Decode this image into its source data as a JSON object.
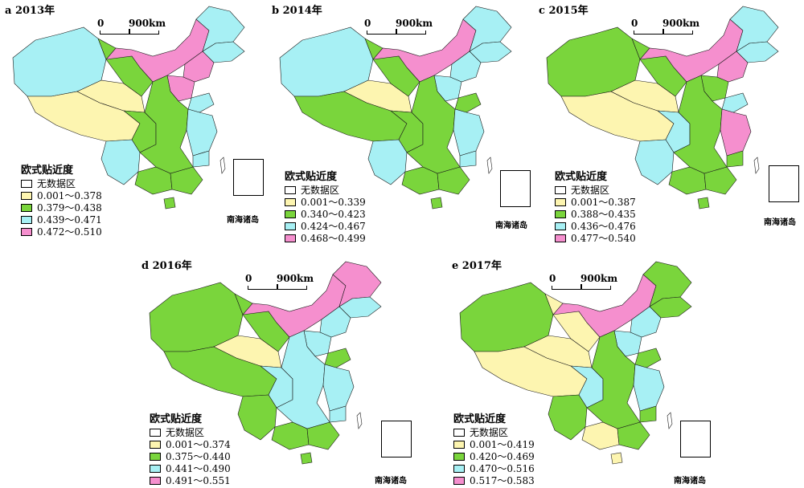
{
  "panels": [
    {
      "label": "a 2013年",
      "legend_title": "欧式贴近度",
      "legend": [
        "无数据区",
        "0.001～0.378",
        "0.379～0.438",
        "0.439～0.471",
        "0.472～0.510"
      ],
      "scale_start": "0",
      "scale_end": "900km",
      "inset_label": "南海诸岛",
      "regions": {
        "xinjiang": "c",
        "tibet": "y",
        "qinghai": "y",
        "gansu": "g",
        "neimenggu": "p",
        "heilongjiang": "c",
        "jilin": "c",
        "liaoning": "p",
        "sichuan": "g",
        "yunnan": "c",
        "guangxi": "g",
        "guangdong": "g",
        "central": "g",
        "east": "c",
        "hebei": "p",
        "shandong": "c",
        "fujian": "c",
        "hainan": "g"
      }
    },
    {
      "label": "b 2014年",
      "legend_title": "欧式贴近度",
      "legend": [
        "无数据区",
        "0.001～0.339",
        "0.340～0.423",
        "0.424～0.467",
        "0.468～0.499"
      ],
      "scale_start": "0",
      "scale_end": "900km",
      "inset_label": "南海诸岛",
      "regions": {
        "xinjiang": "c",
        "tibet": "g",
        "qinghai": "y",
        "gansu": "g",
        "neimenggu": "p",
        "heilongjiang": "c",
        "jilin": "c",
        "liaoning": "c",
        "sichuan": "g",
        "yunnan": "c",
        "guangxi": "g",
        "guangdong": "g",
        "central": "g",
        "east": "c",
        "hebei": "c",
        "shandong": "g",
        "fujian": "c",
        "hainan": "g"
      }
    },
    {
      "label": "c 2015年",
      "legend_title": "欧式贴近度",
      "legend": [
        "无数据区",
        "0.001～0.387",
        "0.388～0.435",
        "0.436～0.476",
        "0.477～0.540"
      ],
      "scale_start": "0",
      "scale_end": "900km",
      "inset_label": "南海诸岛",
      "regions": {
        "xinjiang": "g",
        "tibet": "y",
        "qinghai": "y",
        "gansu": "g",
        "neimenggu": "p",
        "heilongjiang": "c",
        "jilin": "c",
        "liaoning": "p",
        "sichuan": "c",
        "yunnan": "c",
        "guangxi": "g",
        "guangdong": "g",
        "central": "g",
        "east": "p",
        "hebei": "g",
        "shandong": "c",
        "fujian": "g",
        "hainan": "g"
      }
    },
    {
      "label": "d 2016年",
      "legend_title": "欧式贴近度",
      "legend": [
        "无数据区",
        "0.001～0.374",
        "0.375～0.440",
        "0.441～0.490",
        "0.491～0.551"
      ],
      "scale_start": "0",
      "scale_end": "900km",
      "inset_label": "南海诸岛",
      "regions": {
        "xinjiang": "g",
        "tibet": "g",
        "qinghai": "y",
        "gansu": "g",
        "neimenggu": "p",
        "heilongjiang": "p",
        "jilin": "c",
        "liaoning": "c",
        "sichuan": "c",
        "yunnan": "g",
        "guangxi": "g",
        "guangdong": "g",
        "central": "c",
        "east": "c",
        "hebei": "c",
        "shandong": "g",
        "fujian": "c",
        "hainan": "g"
      }
    },
    {
      "label": "e 2017年",
      "legend_title": "欧式贴近度",
      "legend": [
        "无数据区",
        "0.001～0.419",
        "0.420～0.469",
        "0.470～0.516",
        "0.517～0.583"
      ],
      "scale_start": "0",
      "scale_end": "900km",
      "inset_label": "南海诸岛",
      "regions": {
        "xinjiang": "g",
        "tibet": "y",
        "qinghai": "y",
        "gansu": "y",
        "neimenggu": "p",
        "heilongjiang": "g",
        "jilin": "g",
        "liaoning": "c",
        "sichuan": "c",
        "yunnan": "g",
        "guangxi": "y",
        "guangdong": "g",
        "central": "g",
        "east": "c",
        "hebei": "c",
        "shandong": "g",
        "fujian": "g",
        "hainan": "y"
      }
    }
  ],
  "colors": {
    "w": "#ffffff",
    "y": "#fdf5b0",
    "g": "#7ad53c",
    "c": "#a7f0f4",
    "p": "#f58fce"
  }
}
